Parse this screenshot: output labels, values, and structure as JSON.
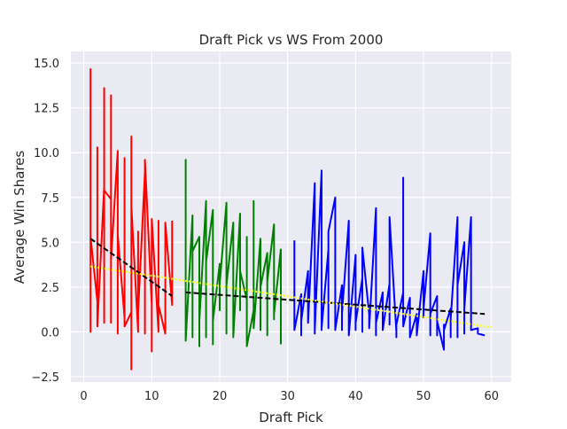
{
  "chart_data": {
    "type": "line",
    "title": "Draft Pick vs WS From 2000",
    "xlabel": "Draft Pick",
    "ylabel": "Average Win Shares",
    "xlim": [
      -1.9,
      62.9
    ],
    "ylim": [
      -2.8,
      15.65
    ],
    "xticks": [
      0,
      10,
      20,
      30,
      40,
      50,
      60
    ],
    "yticks": [
      -2.5,
      0.0,
      2.5,
      5.0,
      7.5,
      10.0,
      12.5,
      15.0
    ],
    "xtick_labels": [
      "0",
      "10",
      "20",
      "30",
      "40",
      "50",
      "60"
    ],
    "ytick_labels": [
      "−2.5",
      "0.0",
      "2.5",
      "5.0",
      "7.5",
      "10.0",
      "12.5",
      "15.0"
    ],
    "grid": true,
    "background": "#eaeaf2",
    "series": [
      {
        "color": "#ff0000",
        "x": [
          1,
          1,
          1,
          1,
          2,
          2,
          2,
          3,
          3,
          3,
          3,
          4,
          4,
          4,
          4,
          5,
          5,
          5,
          6,
          6,
          6,
          7,
          7,
          7,
          7,
          8,
          8,
          8,
          9,
          9,
          9,
          10,
          10,
          10,
          11,
          11,
          11,
          12,
          12,
          13,
          13
        ],
        "y": [
          14.7,
          0,
          8.0,
          5.3,
          1.7,
          10.3,
          0.3,
          8.1,
          13.6,
          0.5,
          7.9,
          7.4,
          13.2,
          0.5,
          4.0,
          10.1,
          -0.1,
          5.4,
          0.8,
          9.7,
          0.3,
          1.1,
          -2.1,
          10.9,
          7.0,
          0,
          5.6,
          1.1,
          8.9,
          -0.1,
          9.6,
          1.5,
          -1.1,
          6.3,
          0,
          6.2,
          1.5,
          -0.1,
          6.1,
          1.5,
          6.2
        ]
      },
      {
        "color": "#008000",
        "x": [
          15,
          15,
          15,
          16,
          16,
          16,
          17,
          17,
          17,
          18,
          18,
          18,
          19,
          19,
          19,
          20,
          20,
          20,
          21,
          21,
          21,
          22,
          22,
          22,
          23,
          23,
          23,
          24,
          24,
          24,
          25,
          25,
          25,
          26,
          26,
          26,
          27,
          27,
          27,
          28,
          28,
          28,
          29,
          29,
          29
        ],
        "y": [
          0.9,
          9.6,
          -0.5,
          6.5,
          -0.3,
          4.5,
          5.3,
          -0.8,
          0.6,
          7.3,
          -0.3,
          3.9,
          6.8,
          -0.7,
          0.6,
          3.8,
          1.2,
          2.7,
          7.2,
          -0.1,
          2.6,
          6.1,
          0.1,
          -0.3,
          6.6,
          1.2,
          3.4,
          1.8,
          5.3,
          -0.8,
          1.2,
          7.3,
          0.2,
          5.2,
          0.1,
          2.5,
          4.4,
          -0.2,
          2.8,
          6.0,
          0.7,
          1.0,
          4.6,
          0.8,
          -0.7
        ]
      },
      {
        "color": "#0000ff",
        "x": [
          31,
          31,
          31,
          32,
          32,
          32,
          33,
          33,
          34,
          34,
          34,
          35,
          35,
          35,
          36,
          36,
          36,
          37,
          37,
          37,
          38,
          38,
          38,
          39,
          39,
          39,
          40,
          40,
          40,
          41,
          41,
          41,
          42,
          42,
          42,
          43,
          43,
          43,
          44,
          44,
          44,
          45,
          45,
          45,
          46,
          46,
          46,
          47,
          47,
          47,
          48,
          48,
          48,
          49,
          49,
          49,
          50,
          50,
          50,
          51,
          51,
          51,
          52,
          52,
          52,
          53,
          53,
          53,
          54,
          54,
          54,
          55,
          55,
          55,
          56,
          56,
          56,
          57,
          57,
          57,
          58,
          58,
          59
        ],
        "y": [
          5.1,
          0.5,
          0.1,
          2.1,
          -0.2,
          0.6,
          3.4,
          0.5,
          8.3,
          -0.1,
          0.1,
          9.0,
          0.1,
          0.2,
          4.6,
          0.2,
          5.6,
          7.5,
          0.1,
          0.1,
          2.6,
          0.1,
          1.0,
          6.2,
          0.6,
          -0.2,
          4.3,
          0.1,
          0.5,
          3.0,
          0,
          4.7,
          1.0,
          0.7,
          0.2,
          6.9,
          -0.2,
          0.5,
          2.2,
          0.8,
          0.1,
          2.7,
          0.4,
          6.4,
          0,
          -0.3,
          0.4,
          2.2,
          8.6,
          0.3,
          1.9,
          0.4,
          -0.3,
          1.0,
          0.3,
          -0.2,
          3.4,
          0.8,
          1.3,
          5.5,
          -0.2,
          1.0,
          2.0,
          -0.2,
          0.6,
          -1.0,
          0.4,
          0.1,
          1.3,
          -0.3,
          0.7,
          6.4,
          -0.3,
          2.6,
          5.0,
          -0.1,
          1.3,
          6.4,
          0.1,
          0.1,
          0.2,
          -0.1,
          -0.2
        ]
      }
    ],
    "trendlines": [
      {
        "color": "#000000",
        "style": "dashed",
        "x": [
          1,
          13
        ],
        "y": [
          5.2,
          2.0
        ]
      },
      {
        "color": "#000000",
        "style": "dashed",
        "x": [
          15,
          59
        ],
        "y": [
          2.2,
          1.0
        ]
      },
      {
        "color": "#ffff00",
        "style": "dotted",
        "x": [
          1,
          60
        ],
        "y": [
          3.65,
          0.25
        ]
      }
    ]
  }
}
